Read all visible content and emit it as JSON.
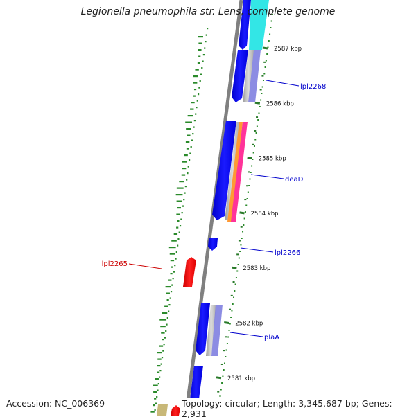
{
  "title": "Legionella pneumophila str. Lens, complete genome",
  "footer": {
    "accession": "Accession: NC_006369",
    "topology": "Topology: circular; Length: 3,345,687 bp; Genes: 2,931"
  },
  "ticks": [
    {
      "label": "2587 kbp",
      "kbp": 2587
    },
    {
      "label": "2586 kbp",
      "kbp": 2586
    },
    {
      "label": "2585 kbp",
      "kbp": 2585
    },
    {
      "label": "2584 kbp",
      "kbp": 2584
    },
    {
      "label": "2583 kbp",
      "kbp": 2583
    },
    {
      "label": "2582 kbp",
      "kbp": 2582
    },
    {
      "label": "2581 kbp",
      "kbp": 2581
    }
  ],
  "gene_labels": [
    {
      "name": "lpl2268",
      "color": "#0000cc",
      "side": "right"
    },
    {
      "name": "deaD",
      "color": "#0000cc",
      "side": "right"
    },
    {
      "name": "lpl2266",
      "color": "#0000cc",
      "side": "right"
    },
    {
      "name": "lpl2265",
      "color": "#cc0000",
      "side": "left"
    },
    {
      "name": "plaA",
      "color": "#0000cc",
      "side": "right"
    }
  ],
  "colors": {
    "forward_gene": "#0000ee",
    "reverse_gene": "#ee0000",
    "backbone": "#808080",
    "tick": "#2a7a2a",
    "dots": "#2a8a2a",
    "cyan": "#33e6e6",
    "lavender": "#8080e0",
    "grey_band": "#c0c0c0",
    "orange": "#ff9933",
    "magenta": "#ff3399",
    "khaki": "#c8b878"
  }
}
